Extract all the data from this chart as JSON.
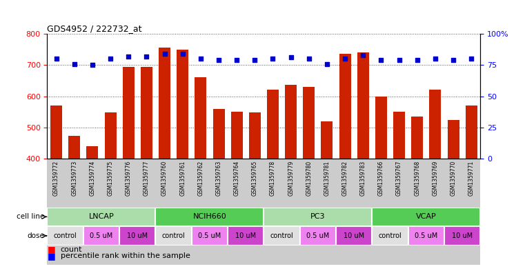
{
  "title": "GDS4952 / 222732_at",
  "samples": [
    "GSM1359772",
    "GSM1359773",
    "GSM1359774",
    "GSM1359775",
    "GSM1359776",
    "GSM1359777",
    "GSM1359760",
    "GSM1359761",
    "GSM1359762",
    "GSM1359763",
    "GSM1359764",
    "GSM1359765",
    "GSM1359778",
    "GSM1359779",
    "GSM1359780",
    "GSM1359781",
    "GSM1359782",
    "GSM1359783",
    "GSM1359766",
    "GSM1359767",
    "GSM1359768",
    "GSM1359769",
    "GSM1359770",
    "GSM1359771"
  ],
  "counts": [
    570,
    472,
    440,
    548,
    693,
    693,
    757,
    749,
    660,
    560,
    550,
    548,
    622,
    637,
    630,
    519,
    737,
    740,
    600,
    550,
    534,
    622,
    524,
    570
  ],
  "percentile_ranks": [
    80,
    76,
    75,
    80,
    82,
    82,
    84,
    84,
    80,
    79,
    79,
    79,
    80,
    81,
    80,
    76,
    80,
    83,
    79,
    79,
    79,
    80,
    79,
    80
  ],
  "cell_lines": [
    {
      "name": "LNCAP",
      "start": 0,
      "end": 6,
      "color": "#AADDAA"
    },
    {
      "name": "NCIH660",
      "start": 6,
      "end": 12,
      "color": "#55CC55"
    },
    {
      "name": "PC3",
      "start": 12,
      "end": 18,
      "color": "#AADDAA"
    },
    {
      "name": "VCAP",
      "start": 18,
      "end": 24,
      "color": "#55CC55"
    }
  ],
  "doses": [
    {
      "label": "control",
      "start": 0,
      "end": 2,
      "color": "#E0E0E0"
    },
    {
      "label": "0.5 uM",
      "start": 2,
      "end": 4,
      "color": "#EE82EE"
    },
    {
      "label": "10 uM",
      "start": 4,
      "end": 6,
      "color": "#CC44CC"
    },
    {
      "label": "control",
      "start": 6,
      "end": 8,
      "color": "#E0E0E0"
    },
    {
      "label": "0.5 uM",
      "start": 8,
      "end": 10,
      "color": "#EE82EE"
    },
    {
      "label": "10 uM",
      "start": 10,
      "end": 12,
      "color": "#CC44CC"
    },
    {
      "label": "control",
      "start": 12,
      "end": 14,
      "color": "#E0E0E0"
    },
    {
      "label": "0.5 uM",
      "start": 14,
      "end": 16,
      "color": "#EE82EE"
    },
    {
      "label": "10 uM",
      "start": 16,
      "end": 18,
      "color": "#CC44CC"
    },
    {
      "label": "control",
      "start": 18,
      "end": 20,
      "color": "#E0E0E0"
    },
    {
      "label": "0.5 uM",
      "start": 20,
      "end": 22,
      "color": "#EE82EE"
    },
    {
      "label": "10 uM",
      "start": 22,
      "end": 24,
      "color": "#CC44CC"
    }
  ],
  "ylim_left": [
    400,
    800
  ],
  "ylim_right": [
    0,
    100
  ],
  "yticks_left": [
    400,
    500,
    600,
    700,
    800
  ],
  "yticks_right": [
    0,
    25,
    50,
    75,
    100
  ],
  "bar_color": "#CC2200",
  "dot_color": "#0000CC",
  "bg_color": "#FFFFFF",
  "grid_color": "#555555"
}
